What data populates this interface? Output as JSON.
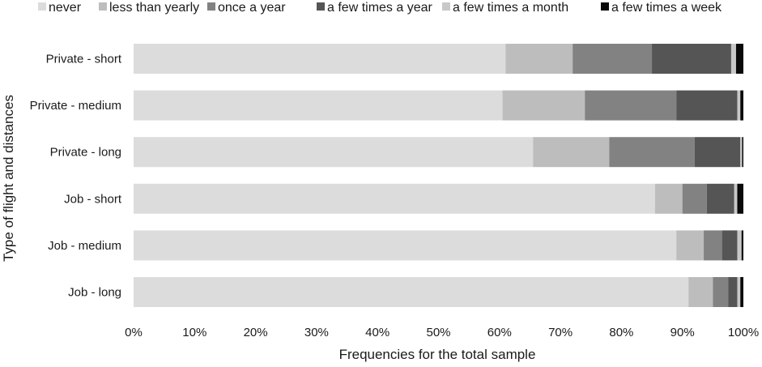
{
  "chart_data": {
    "type": "bar",
    "orientation": "horizontal",
    "stacked": true,
    "normalized": true,
    "title": "",
    "xlabel": "Frequencies for the total sample",
    "ylabel": "Type of flight and distances",
    "xlim": [
      0,
      100
    ],
    "xticks": [
      "0%",
      "10%",
      "20%",
      "30%",
      "40%",
      "50%",
      "60%",
      "70%",
      "80%",
      "90%",
      "100%"
    ],
    "grid": false,
    "legend_position": "top",
    "categories": [
      "Private - short",
      "Private - medium",
      "Private - long",
      "Job - short",
      "Job - medium",
      "Job - long"
    ],
    "series": [
      {
        "name": "never",
        "color": "#dcdcdc",
        "values": [
          61,
          60.5,
          65.5,
          85.5,
          89,
          91
        ]
      },
      {
        "name": "less than yearly",
        "color": "#bdbdbd",
        "values": [
          11,
          13.5,
          12.5,
          4.5,
          4.5,
          4
        ]
      },
      {
        "name": "once a year",
        "color": "#828282",
        "values": [
          13,
          15,
          14,
          4,
          3,
          2.5
        ]
      },
      {
        "name": "a few times a year",
        "color": "#555555",
        "values": [
          13,
          10,
          7.5,
          4.5,
          2.5,
          1.5
        ]
      },
      {
        "name": "a few times a month",
        "color": "#c8c8c8",
        "values": [
          0.8,
          0.5,
          0.3,
          0.5,
          0.7,
          0.5
        ]
      },
      {
        "name": "a few times a week",
        "color": "#0a0a0a",
        "values": [
          1.2,
          0.5,
          0.2,
          1,
          0.3,
          0.5
        ]
      }
    ]
  }
}
